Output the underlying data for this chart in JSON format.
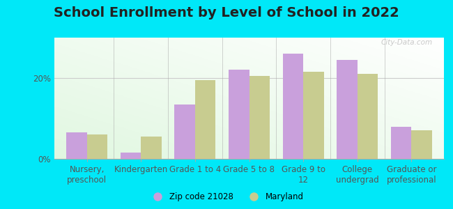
{
  "title": "School Enrollment by Level of School in 2022",
  "categories": [
    "Nursery,\npreschool",
    "Kindergarten",
    "Grade 1 to 4",
    "Grade 5 to 8",
    "Grade 9 to\n12",
    "College\nundergrad",
    "Graduate or\nprofessional"
  ],
  "zip_values": [
    6.5,
    1.5,
    13.5,
    22.0,
    26.0,
    24.5,
    8.0
  ],
  "maryland_values": [
    6.0,
    5.5,
    19.5,
    20.5,
    21.5,
    21.0,
    7.0
  ],
  "zip_color": "#c9a0dc",
  "maryland_color": "#c8cc90",
  "background_color": "#00e8f8",
  "ylim": [
    0,
    30
  ],
  "yticks": [
    0,
    20
  ],
  "ytick_labels": [
    "0%",
    "20%"
  ],
  "legend_zip_label": "Zip code 21028",
  "legend_maryland_label": "Maryland",
  "watermark": "City-Data.com",
  "bar_width": 0.38,
  "title_fontsize": 14,
  "tick_fontsize": 8.5
}
